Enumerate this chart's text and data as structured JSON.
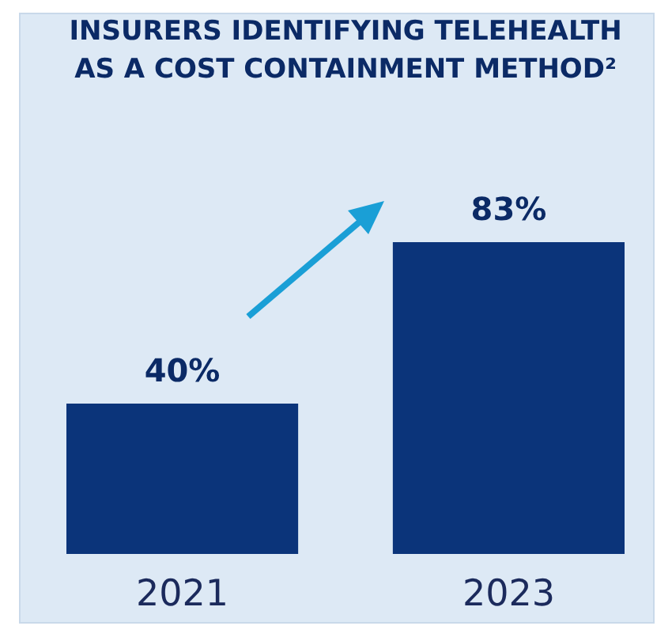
{
  "chart_data": {
    "type": "bar",
    "title": [
      "INSURERS IDENTIFYING TELEHEALTH",
      "AS A COST CONTAINMENT METHOD²"
    ],
    "categories": [
      "2021",
      "2023"
    ],
    "values": [
      40,
      83
    ],
    "value_labels": [
      "40%",
      "83%"
    ],
    "color": "#0b347a"
  }
}
